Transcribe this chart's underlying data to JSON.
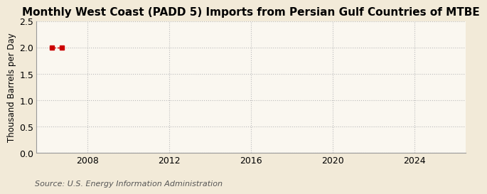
{
  "title": "Monthly West Coast (PADD 5) Imports from Persian Gulf Countries of MTBE",
  "ylabel": "Thousand Barrels per Day",
  "source": "Source: U.S. Energy Information Administration",
  "background_color": "#f2ead8",
  "plot_background_color": "#faf7f0",
  "data_x": [
    2006.25,
    2006.75
  ],
  "data_y": [
    2.0,
    2.0
  ],
  "marker_color": "#cc0000",
  "marker_style": "s",
  "marker_size": 4,
  "line_color": "#cc0000",
  "line_style": "--",
  "line_width": 1.0,
  "xlim": [
    2005.5,
    2026.5
  ],
  "ylim": [
    0.0,
    2.5
  ],
  "xticks": [
    2008,
    2012,
    2016,
    2020,
    2024
  ],
  "yticks": [
    0.0,
    0.5,
    1.0,
    1.5,
    2.0,
    2.5
  ],
  "hgrid_color": "#bbbbbb",
  "vgrid_color": "#bbbbbb",
  "grid_style": ":",
  "grid_linewidth": 0.8,
  "title_fontsize": 11,
  "ylabel_fontsize": 8.5,
  "tick_fontsize": 9,
  "source_fontsize": 8
}
